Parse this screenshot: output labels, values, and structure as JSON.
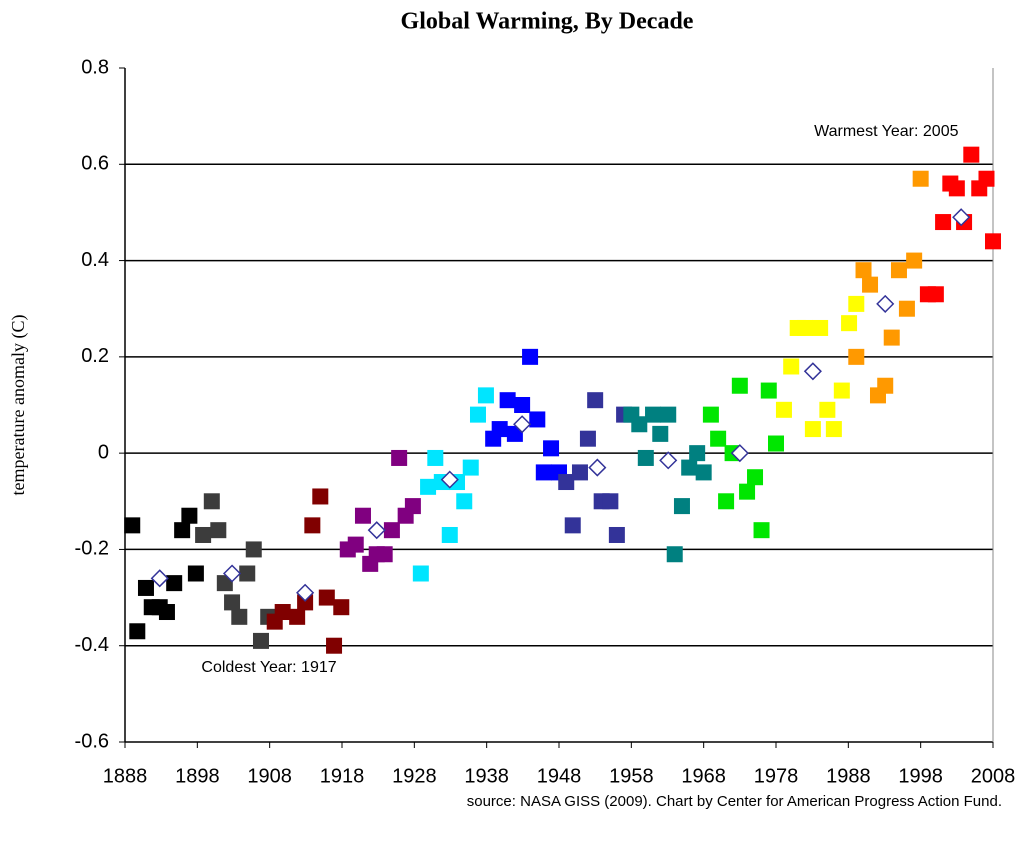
{
  "chart_data": {
    "type": "scatter",
    "title": "Global Warming, By Decade",
    "ylabel": "temperature anomaly (C)",
    "source": "source: NASA GISS (2009). Chart by Center for American Progress Action Fund.",
    "xlim": [
      1888,
      2008
    ],
    "xticks": [
      1888,
      1898,
      1908,
      1918,
      1928,
      1938,
      1948,
      1958,
      1968,
      1978,
      1988,
      1998,
      2008
    ],
    "ylim": [
      -0.6,
      0.8
    ],
    "yticks": [
      {
        "value": -0.6,
        "label": "-0.6"
      },
      {
        "value": -0.4,
        "label": "-0.4"
      },
      {
        "value": -0.2,
        "label": "-0.2"
      },
      0,
      0.2,
      0.4,
      0.6,
      0.8
    ],
    "grid": true,
    "annotations": [
      {
        "text": "Warmest Year: 2005",
        "x": 2005.0,
        "y": 0.62
      },
      {
        "text": "Coldest Year: 1917",
        "x": 1916.9,
        "y": -0.4
      }
    ],
    "series": [
      {
        "color": "#000000",
        "marker": "square",
        "x": [
          1889.0,
          1889.7,
          1890.9,
          1891.7,
          1892.8,
          1893.8,
          1894.8,
          1895.9,
          1896.9,
          1897.8
        ],
        "values": [
          -0.15,
          -0.37,
          -0.28,
          -0.32,
          -0.32,
          -0.33,
          -0.27,
          -0.16,
          -0.13,
          -0.25
        ]
      },
      {
        "color": "#3c3c3c",
        "marker": "square",
        "x": [
          1898.8,
          1900.0,
          1900.9,
          1901.8,
          1902.8,
          1903.8,
          1904.9,
          1905.8,
          1906.8,
          1907.8
        ],
        "values": [
          -0.17,
          -0.1,
          -0.16,
          -0.27,
          -0.31,
          -0.34,
          -0.25,
          -0.2,
          -0.39,
          -0.34
        ]
      },
      {
        "color": "#800000",
        "marker": "square",
        "x": [
          1908.7,
          1909.8,
          1911.8,
          1912.9,
          1913.9,
          1915.0,
          1915.9,
          1916.9,
          1917.9
        ],
        "values": [
          -0.35,
          -0.33,
          -0.34,
          -0.31,
          -0.15,
          -0.09,
          -0.3,
          -0.4,
          -0.32
        ]
      },
      {
        "color": "#800080",
        "marker": "square",
        "x": [
          1918.8,
          1919.9,
          1920.9,
          1921.9,
          1922.8,
          1923.9,
          1924.9,
          1925.9,
          1926.8,
          1927.8
        ],
        "values": [
          -0.2,
          -0.19,
          -0.13,
          -0.23,
          -0.21,
          -0.21,
          -0.16,
          -0.01,
          -0.13,
          -0.11
        ]
      },
      {
        "color": "#00e5ff",
        "marker": "square",
        "x": [
          1928.9,
          1929.9,
          1930.9,
          1931.8,
          1932.9,
          1933.9,
          1934.9,
          1935.8,
          1936.8,
          1937.9
        ],
        "values": [
          -0.25,
          -0.07,
          -0.01,
          -0.06,
          -0.17,
          -0.06,
          -0.1,
          -0.03,
          0.08,
          0.12
        ]
      },
      {
        "color": "#0000ff",
        "marker": "square",
        "x": [
          1938.9,
          1939.8,
          1940.9,
          1941.9,
          1942.9,
          1944.0,
          1945.0,
          1945.9,
          1946.9,
          1948.0
        ],
        "values": [
          0.03,
          0.05,
          0.11,
          0.04,
          0.1,
          0.2,
          0.07,
          -0.04,
          0.01,
          -0.04
        ]
      },
      {
        "color": "#333399",
        "marker": "square",
        "x": [
          1949.0,
          1949.9,
          1950.9,
          1952.0,
          1953.0,
          1953.9,
          1955.1,
          1956.0,
          1957.0
        ],
        "values": [
          -0.06,
          -0.15,
          -0.04,
          0.03,
          0.11,
          -0.1,
          -0.1,
          -0.17,
          0.08
        ]
      },
      {
        "color": "#008080",
        "marker": "square",
        "x": [
          1958.0,
          1959.1,
          1960.0,
          1961.0,
          1962.0,
          1963.1,
          1964.0,
          1965.0,
          1966.0,
          1967.1,
          1968.0
        ],
        "values": [
          0.08,
          0.06,
          -0.01,
          0.08,
          0.04,
          0.08,
          -0.21,
          -0.11,
          -0.03,
          0.0,
          -0.04
        ]
      },
      {
        "color": "#00e600",
        "marker": "square",
        "x": [
          1969.0,
          1970.0,
          1971.1,
          1972.0,
          1973.0,
          1974.0,
          1975.1,
          1976.0,
          1977.0,
          1978.0
        ],
        "values": [
          0.08,
          0.03,
          -0.1,
          0.0,
          0.14,
          -0.08,
          -0.05,
          -0.16,
          0.13,
          0.02
        ]
      },
      {
        "color": "#ffff00",
        "marker": "square",
        "x": [
          1979.1,
          1980.1,
          1981.0,
          1982.0,
          1983.1,
          1984.1,
          1985.1,
          1986.0,
          1987.1,
          1988.1,
          1989.1
        ],
        "values": [
          0.09,
          0.18,
          0.26,
          0.26,
          0.05,
          0.26,
          0.09,
          0.05,
          0.13,
          0.27,
          0.31
        ]
      },
      {
        "color": "#ff9900",
        "marker": "square",
        "x": [
          1989.1,
          1990.1,
          1991.0,
          1992.1,
          1993.1,
          1994.0,
          1995.0,
          1996.1,
          1997.1,
          1998.0
        ],
        "values": [
          0.2,
          0.38,
          0.35,
          0.12,
          0.14,
          0.24,
          0.38,
          0.3,
          0.4,
          0.57
        ]
      },
      {
        "color": "#ff0000",
        "marker": "square",
        "x": [
          1999.0,
          2000.1,
          2001.1,
          2002.1,
          2003.0,
          2004.0,
          2005.0,
          2006.1,
          2007.1,
          2008.0
        ],
        "values": [
          0.33,
          0.33,
          0.48,
          0.56,
          0.55,
          0.48,
          0.62,
          0.55,
          0.57,
          0.44
        ]
      },
      {
        "color": "#333399",
        "marker": "diamond",
        "x": [
          1892.8,
          1902.8,
          1912.9,
          1922.8,
          1932.9,
          1942.9,
          1953.3,
          1963.1,
          1973.0,
          1983.1,
          1993.1,
          2003.6
        ],
        "values": [
          -0.26,
          -0.25,
          -0.29,
          -0.16,
          -0.055,
          0.06,
          -0.03,
          -0.015,
          0.0,
          0.17,
          0.31,
          0.49
        ]
      }
    ]
  }
}
